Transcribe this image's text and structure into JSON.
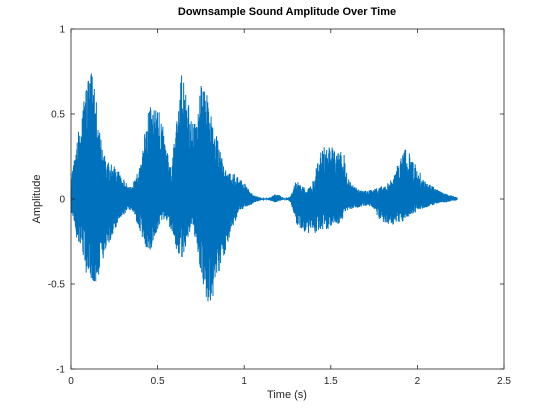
{
  "chart_data": {
    "type": "line",
    "title": "Downsample Sound Amplitude Over Time",
    "xlabel": "Time (s)",
    "ylabel": "Amplitude",
    "xlim": [
      0,
      2.5
    ],
    "ylim": [
      -1,
      1
    ],
    "xticks": [
      0,
      0.5,
      1,
      1.5,
      2,
      2.5
    ],
    "yticks": [
      -1,
      -0.5,
      0,
      0.5,
      1
    ],
    "xtick_labels": [
      "0",
      "0.5",
      "1",
      "1.5",
      "2",
      "2.5"
    ],
    "ytick_labels": [
      "-1",
      "-0.5",
      "0",
      "0.5",
      "1"
    ],
    "grid": false,
    "line_color": "#0072bd",
    "series": [
      {
        "envelope_time": [
          0.0,
          0.03,
          0.06,
          0.09,
          0.12,
          0.15,
          0.18,
          0.21,
          0.24,
          0.27,
          0.3,
          0.33,
          0.36,
          0.4,
          0.43,
          0.46,
          0.49,
          0.52,
          0.55,
          0.58,
          0.61,
          0.64,
          0.67,
          0.7,
          0.73,
          0.76,
          0.79,
          0.82,
          0.85,
          0.88,
          0.91,
          0.94,
          0.97,
          1.0,
          1.03,
          1.06,
          1.09,
          1.12,
          1.15,
          1.18,
          1.21,
          1.24,
          1.27,
          1.3,
          1.33,
          1.36,
          1.39,
          1.42,
          1.45,
          1.48,
          1.51,
          1.54,
          1.57,
          1.6,
          1.63,
          1.66,
          1.69,
          1.72,
          1.75,
          1.78,
          1.81,
          1.84,
          1.87,
          1.9,
          1.93,
          1.96,
          1.99,
          2.02,
          2.05,
          2.08,
          2.11,
          2.14,
          2.17,
          2.2,
          2.23
        ],
        "envelope_max": [
          0.15,
          0.28,
          0.55,
          0.7,
          0.76,
          0.55,
          0.3,
          0.22,
          0.2,
          0.18,
          0.12,
          0.08,
          0.1,
          0.2,
          0.5,
          0.55,
          0.55,
          0.5,
          0.3,
          0.2,
          0.45,
          0.76,
          0.6,
          0.45,
          0.5,
          0.75,
          0.6,
          0.45,
          0.35,
          0.2,
          0.15,
          0.15,
          0.12,
          0.1,
          0.05,
          0.02,
          0.01,
          0.0,
          0.01,
          0.03,
          0.02,
          0.0,
          0.02,
          0.12,
          0.08,
          0.06,
          0.08,
          0.2,
          0.3,
          0.33,
          0.32,
          0.3,
          0.3,
          0.12,
          0.08,
          0.06,
          0.05,
          0.05,
          0.06,
          0.07,
          0.08,
          0.1,
          0.15,
          0.25,
          0.3,
          0.26,
          0.2,
          0.15,
          0.1,
          0.08,
          0.06,
          0.04,
          0.03,
          0.02,
          0.01
        ],
        "envelope_min": [
          -0.08,
          -0.22,
          -0.3,
          -0.45,
          -0.5,
          -0.48,
          -0.38,
          -0.3,
          -0.22,
          -0.15,
          -0.1,
          -0.06,
          -0.08,
          -0.2,
          -0.3,
          -0.3,
          -0.22,
          -0.15,
          -0.12,
          -0.2,
          -0.32,
          -0.35,
          -0.25,
          -0.15,
          -0.3,
          -0.5,
          -0.62,
          -0.6,
          -0.45,
          -0.35,
          -0.25,
          -0.15,
          -0.08,
          -0.05,
          -0.04,
          -0.02,
          -0.01,
          0.0,
          -0.01,
          -0.02,
          -0.01,
          0.0,
          -0.02,
          -0.15,
          -0.18,
          -0.2,
          -0.2,
          -0.2,
          -0.18,
          -0.18,
          -0.15,
          -0.15,
          -0.12,
          -0.06,
          -0.06,
          -0.05,
          -0.04,
          -0.04,
          -0.06,
          -0.12,
          -0.14,
          -0.15,
          -0.15,
          -0.15,
          -0.12,
          -0.1,
          -0.08,
          -0.06,
          -0.05,
          -0.04,
          -0.03,
          -0.02,
          -0.02,
          -0.01,
          -0.01
        ]
      }
    ]
  }
}
